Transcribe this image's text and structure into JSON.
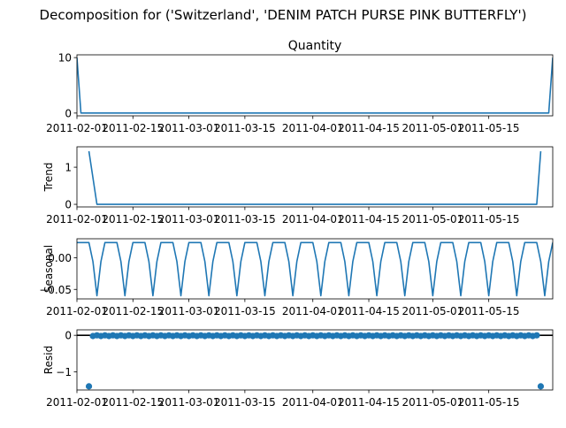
{
  "figure": {
    "suptitle": "Decomposition for ('Switzerland', 'DENIM PATCH PURSE PINK BUTTERFLY')"
  },
  "colors": {
    "line": "#1f77b4",
    "axis": "#000000",
    "background": "#ffffff"
  },
  "chart_data": [
    {
      "type": "line",
      "title": "Quantity",
      "ylabel": "",
      "x_start": "2011-02-01",
      "x_end": "2011-05-31",
      "xlim": [
        "2011-02-01",
        "2011-05-31"
      ],
      "ylim": [
        -0.5,
        10.5
      ],
      "yticks": [
        0,
        10
      ],
      "xticklabels": [
        "2011-02-01",
        "2011-02-15",
        "2011-03-01",
        "2011-03-15",
        "2011-04-01",
        "2011-04-15",
        "2011-05-01",
        "2011-05-15"
      ],
      "series": [
        {
          "x": [
            "2011-02-01",
            "2011-02-02",
            "2011-05-30",
            "2011-05-31"
          ],
          "values": [
            10,
            0,
            0,
            10
          ]
        }
      ],
      "grid": false
    },
    {
      "type": "line",
      "title": "",
      "ylabel": "Trend",
      "xlim": [
        "2011-02-01",
        "2011-05-31"
      ],
      "ylim": [
        -0.07,
        1.55
      ],
      "yticks": [
        0,
        1
      ],
      "xticklabels": [
        "2011-02-01",
        "2011-02-15",
        "2011-03-01",
        "2011-03-15",
        "2011-04-01",
        "2011-04-15",
        "2011-05-01",
        "2011-05-15"
      ],
      "series": [
        {
          "x": [
            "2011-02-04",
            "2011-02-06",
            "2011-05-27",
            "2011-05-28"
          ],
          "values": [
            1.43,
            0,
            0,
            1.43
          ]
        }
      ],
      "grid": false
    },
    {
      "type": "line",
      "title": "",
      "ylabel": "Seasonal",
      "xlim": [
        "2011-02-01",
        "2011-05-31"
      ],
      "ylim": [
        -0.065,
        0.03
      ],
      "yticks": [
        -0.05,
        0.0
      ],
      "ytick_labels": [
        "−0.05",
        "0.00"
      ],
      "xticklabels": [
        "2011-02-01",
        "2011-02-15",
        "2011-03-01",
        "2011-03-15",
        "2011-04-01",
        "2011-04-15",
        "2011-05-01",
        "2011-05-15"
      ],
      "period": 7,
      "pattern": [
        0.024,
        0.024,
        0.024,
        0.024,
        -0.006,
        -0.06,
        -0.006
      ],
      "grid": false
    },
    {
      "type": "scatter",
      "title": "",
      "ylabel": "Resid",
      "xlim": [
        "2011-02-01",
        "2011-05-31"
      ],
      "ylim": [
        -1.5,
        0.15
      ],
      "yticks": [
        -1,
        0
      ],
      "ytick_labels": [
        "−1",
        "0"
      ],
      "xticklabels": [
        "2011-02-01",
        "2011-02-15",
        "2011-03-01",
        "2011-03-15",
        "2011-04-01",
        "2011-04-15",
        "2011-05-01",
        "2011-05-15"
      ],
      "x_range": [
        "2011-02-04",
        "2011-05-28"
      ],
      "outliers": [
        {
          "x": "2011-02-04",
          "value": -1.4
        },
        {
          "x": "2011-05-28",
          "value": -1.4
        }
      ],
      "baseline_values": [
        0.0,
        -0.02
      ],
      "zero_line": true,
      "grid": false
    }
  ]
}
